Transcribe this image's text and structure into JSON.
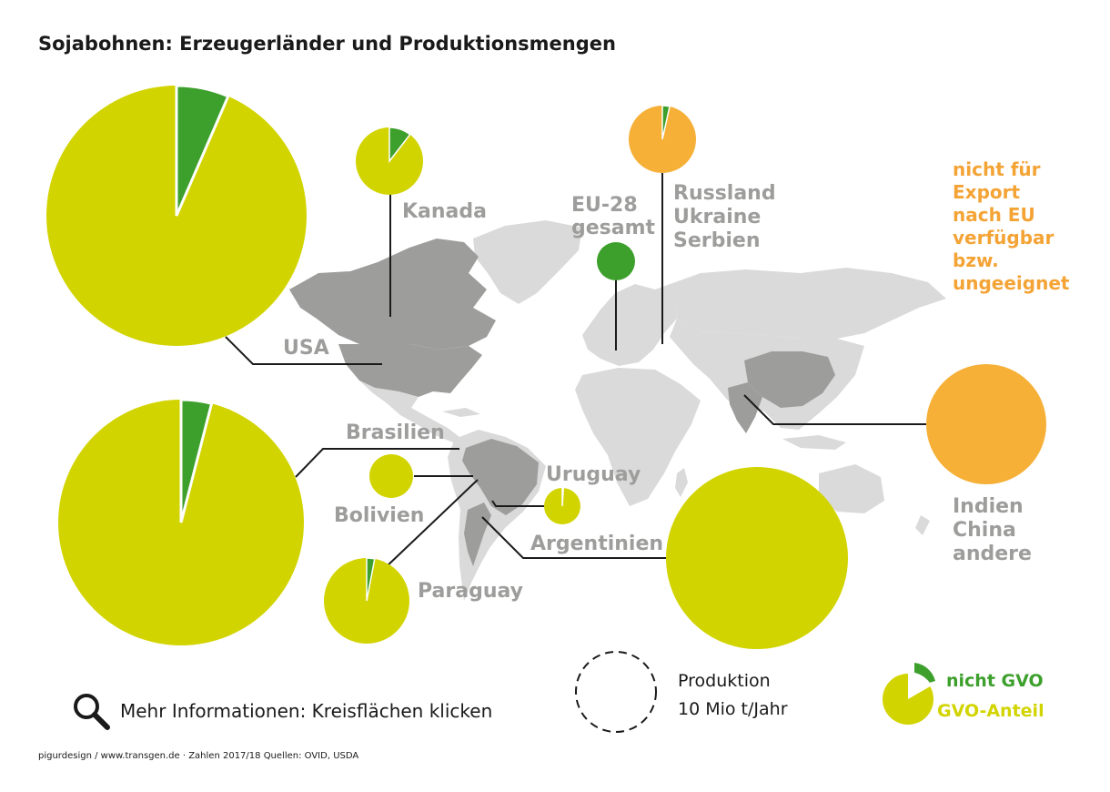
{
  "title": "Sojabohnen: Erzeugerländer und Produktionsmengen",
  "colors": {
    "gvo": "#d2d400",
    "nicht_gvo": "#3d9f2c",
    "not_available": "#f6b037",
    "map_producer": "#9d9d9c",
    "map_other": "#dadada"
  },
  "labels": {
    "kanada": "Kanada",
    "usa": "USA",
    "eu_line1": "EU-28",
    "eu_line2": "gesamt",
    "russland_line1": "Russland",
    "russland_line2": "Ukraine",
    "russland_line3": "Serbien",
    "brasilien": "Brasilien",
    "bolivien": "Bolivien",
    "uruguay": "Uruguay",
    "argentinien": "Argentinien",
    "paraguay": "Paraguay",
    "indien_line1": "Indien",
    "indien_line2": "China",
    "indien_line3": "andere"
  },
  "note": {
    "line1": "nicht für",
    "line2": "Export",
    "line3": "nach EU",
    "line4": "verfügbar",
    "line5": "bzw.",
    "line6": "ungeeignet"
  },
  "legend": {
    "produktion": "Produktion",
    "scale": "10 Mio t/Jahr",
    "nicht_gvo": "nicht GVO",
    "gvo_anteil": "GVO-Anteil"
  },
  "info": "Mehr Informationen: Kreisflächen klicken",
  "footer": "pigurdesign / www.transgen.de · Zahlen 2017/18 Quellen: OVID, USDA",
  "pies": [
    {
      "id": "usa",
      "kind": "gvo",
      "share_non_gvo": 0.065
    },
    {
      "id": "kanada",
      "kind": "gvo",
      "share_non_gvo": 0.105
    },
    {
      "id": "russland",
      "kind": "orange",
      "share_non_gvo": 0.035
    },
    {
      "id": "eu",
      "kind": "green"
    },
    {
      "id": "indien",
      "kind": "orange"
    },
    {
      "id": "brasilien",
      "kind": "gvo",
      "share_non_gvo": 0.04
    },
    {
      "id": "bolivien",
      "kind": "gvo",
      "share_non_gvo": 0
    },
    {
      "id": "uruguay",
      "kind": "gvo",
      "share_non_gvo": 0.01
    },
    {
      "id": "paraguay",
      "kind": "gvo",
      "share_non_gvo": 0.03
    },
    {
      "id": "argentinien",
      "kind": "gvo",
      "share_non_gvo": 0
    }
  ]
}
